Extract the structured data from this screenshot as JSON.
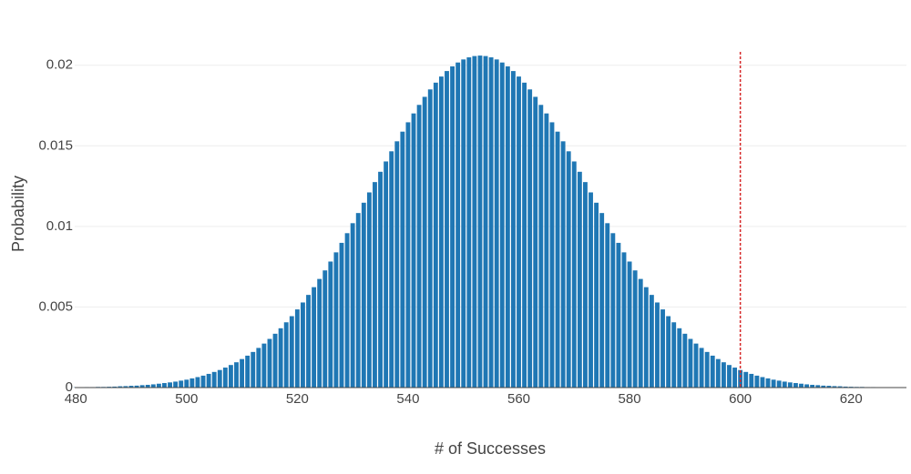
{
  "chart_data": {
    "type": "bar",
    "x_label": "# of Successes",
    "y_label": "Probability",
    "color": "#1f77b4",
    "x": [
      480,
      481,
      482,
      483,
      484,
      485,
      486,
      487,
      488,
      489,
      490,
      491,
      492,
      493,
      494,
      495,
      496,
      497,
      498,
      499,
      500,
      501,
      502,
      503,
      504,
      505,
      506,
      507,
      508,
      509,
      510,
      511,
      512,
      513,
      514,
      515,
      516,
      517,
      518,
      519,
      520,
      521,
      522,
      523,
      524,
      525,
      526,
      527,
      528,
      529,
      530,
      531,
      532,
      533,
      534,
      535,
      536,
      537,
      538,
      539,
      540,
      541,
      542,
      543,
      544,
      545,
      546,
      547,
      548,
      549,
      550,
      551,
      552,
      553,
      554,
      555,
      556,
      557,
      558,
      559,
      560,
      561,
      562,
      563,
      564,
      565,
      566,
      567,
      568,
      569,
      570,
      571,
      572,
      573,
      574,
      575,
      576,
      577,
      578,
      579,
      580,
      581,
      582,
      583,
      584,
      585,
      586,
      587,
      588,
      589,
      590,
      591,
      592,
      593,
      594,
      595,
      596,
      597,
      598,
      599,
      600,
      601,
      602,
      603,
      604,
      605,
      606,
      607,
      608,
      609,
      610,
      611,
      612,
      613,
      614,
      615,
      616,
      617,
      618,
      619,
      620,
      621,
      622,
      623,
      624,
      625,
      626,
      627,
      628,
      629
    ],
    "values": [
      2e-05,
      2e-05,
      3e-05,
      3e-05,
      4e-05,
      4e-05,
      5e-05,
      6e-05,
      8e-05,
      9e-05,
      0.00011,
      0.00012,
      0.00015,
      0.00017,
      0.0002,
      0.00024,
      0.00028,
      0.00032,
      0.00037,
      0.00043,
      0.00049,
      0.00057,
      0.00065,
      0.00074,
      0.00085,
      0.00097,
      0.00109,
      0.00124,
      0.0014,
      0.00157,
      0.00177,
      0.00198,
      0.00221,
      0.00246,
      0.00273,
      0.00302,
      0.00334,
      0.00368,
      0.00405,
      0.00443,
      0.00485,
      0.00528,
      0.00575,
      0.00623,
      0.00674,
      0.00727,
      0.00782,
      0.00839,
      0.00898,
      0.00958,
      0.0102,
      0.01083,
      0.01147,
      0.01211,
      0.01275,
      0.01339,
      0.01403,
      0.01466,
      0.01528,
      0.01588,
      0.01646,
      0.01701,
      0.01754,
      0.01804,
      0.0185,
      0.01892,
      0.0193,
      0.01964,
      0.01993,
      0.02017,
      0.02036,
      0.02049,
      0.02057,
      0.0206,
      0.02057,
      0.02049,
      0.02036,
      0.02017,
      0.01993,
      0.01964,
      0.0193,
      0.01892,
      0.0185,
      0.01804,
      0.01754,
      0.01701,
      0.01646,
      0.01588,
      0.01528,
      0.01466,
      0.01403,
      0.01339,
      0.01275,
      0.01211,
      0.01147,
      0.01083,
      0.0102,
      0.00958,
      0.00898,
      0.00839,
      0.00782,
      0.00727,
      0.00674,
      0.00623,
      0.00575,
      0.00528,
      0.00485,
      0.00443,
      0.00405,
      0.00368,
      0.00334,
      0.00302,
      0.00273,
      0.00246,
      0.00221,
      0.00198,
      0.00177,
      0.00157,
      0.0014,
      0.00124,
      0.00109,
      0.00097,
      0.00085,
      0.00074,
      0.00065,
      0.00057,
      0.00049,
      0.00043,
      0.00037,
      0.00032,
      0.00028,
      0.00024,
      0.0002,
      0.00017,
      0.00015,
      0.00012,
      0.00011,
      9e-05,
      8e-05,
      6e-05,
      5e-05,
      4e-05,
      4e-05,
      3e-05,
      3e-05,
      2e-05,
      2e-05,
      1e-05,
      1e-05,
      1e-05
    ],
    "xlim": [
      479.8,
      630
    ],
    "xticks": [
      480,
      500,
      520,
      540,
      560,
      580,
      600,
      620
    ],
    "ylim": [
      0,
      0.021
    ],
    "yticks": [
      0,
      0.005,
      0.01,
      0.015,
      0.02
    ],
    "grid": true,
    "vline": {
      "x": 600,
      "color": "#d62728"
    }
  }
}
